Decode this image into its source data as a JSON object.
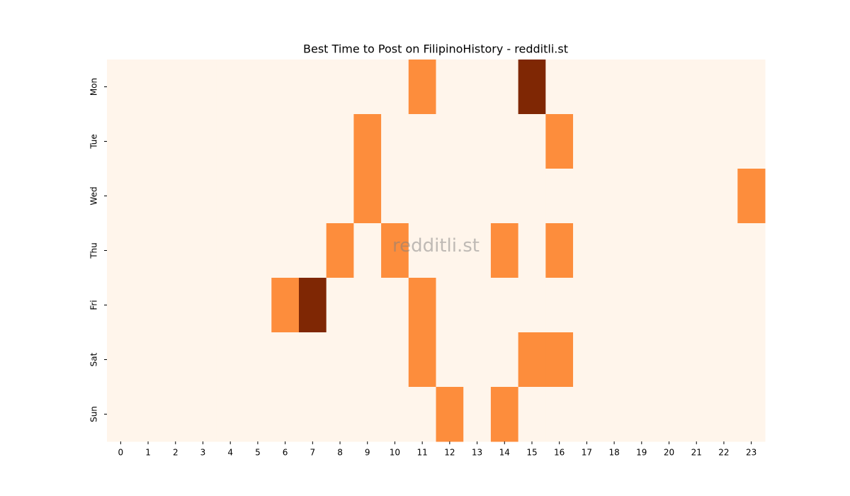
{
  "chart_data": {
    "type": "heatmap",
    "title": "Best Time to Post on FilipinoHistory - redditli.st",
    "watermark": "redditli.st",
    "x": [
      0,
      1,
      2,
      3,
      4,
      5,
      6,
      7,
      8,
      9,
      10,
      11,
      12,
      13,
      14,
      15,
      16,
      17,
      18,
      19,
      20,
      21,
      22,
      23
    ],
    "y": [
      "Mon",
      "Tue",
      "Wed",
      "Thu",
      "Fri",
      "Sat",
      "Sun"
    ],
    "values": [
      [
        0,
        0,
        0,
        0,
        0,
        0,
        0,
        0,
        0,
        0,
        0,
        1,
        0,
        0,
        0,
        2,
        0,
        0,
        0,
        0,
        0,
        0,
        0,
        0
      ],
      [
        0,
        0,
        0,
        0,
        0,
        0,
        0,
        0,
        0,
        1,
        0,
        0,
        0,
        0,
        0,
        0,
        1,
        0,
        0,
        0,
        0,
        0,
        0,
        0
      ],
      [
        0,
        0,
        0,
        0,
        0,
        0,
        0,
        0,
        0,
        1,
        0,
        0,
        0,
        0,
        0,
        0,
        0,
        0,
        0,
        0,
        0,
        0,
        0,
        1
      ],
      [
        0,
        0,
        0,
        0,
        0,
        0,
        0,
        0,
        1,
        0,
        1,
        0,
        0,
        0,
        1,
        0,
        1,
        0,
        0,
        0,
        0,
        0,
        0,
        0
      ],
      [
        0,
        0,
        0,
        0,
        0,
        0,
        1,
        2,
        0,
        0,
        0,
        1,
        0,
        0,
        0,
        0,
        0,
        0,
        0,
        0,
        0,
        0,
        0,
        0
      ],
      [
        0,
        0,
        0,
        0,
        0,
        0,
        0,
        0,
        0,
        0,
        0,
        1,
        0,
        0,
        0,
        1,
        1,
        0,
        0,
        0,
        0,
        0,
        0,
        0
      ],
      [
        0,
        0,
        0,
        0,
        0,
        0,
        0,
        0,
        0,
        0,
        0,
        0,
        1,
        0,
        1,
        0,
        0,
        0,
        0,
        0,
        0,
        0,
        0,
        0
      ]
    ],
    "vmin": 0,
    "vmax": 2,
    "colormap": [
      "#fff5eb",
      "#fd8d3c",
      "#7f2704"
    ]
  }
}
